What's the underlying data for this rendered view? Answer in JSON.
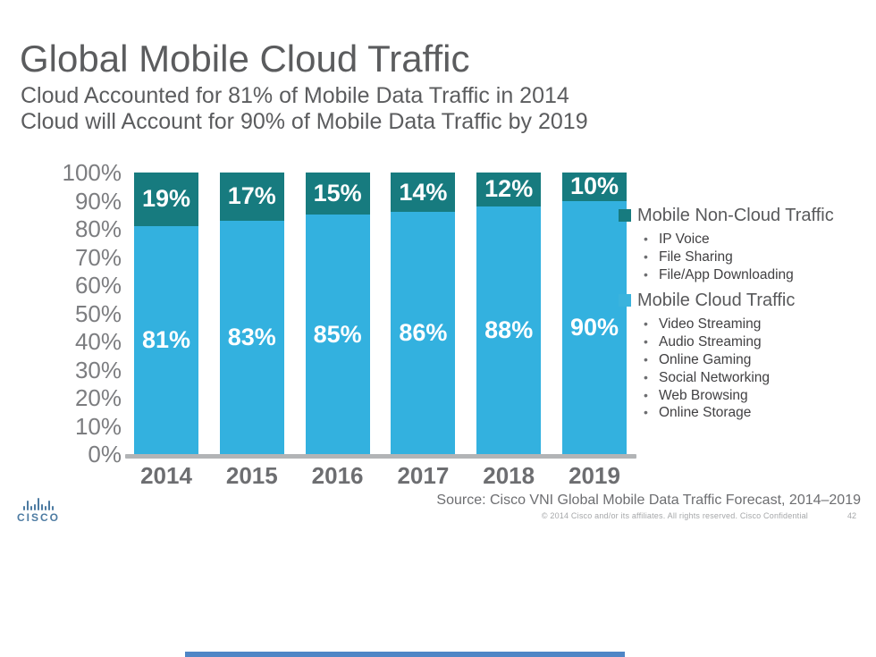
{
  "slide": {
    "title": "Global Mobile Cloud Traffic",
    "subtitle_line1": "Cloud Accounted for 81% of Mobile Data Traffic in 2014",
    "subtitle_line2": "Cloud will Account for 90% of Mobile Data Traffic by 2019",
    "source": "Source: Cisco VNI Global Mobile Data Traffic Forecast, 2014–2019",
    "copyright": "© 2014  Cisco and/or its affiliates. All rights reserved.   Cisco Confidential",
    "page_number": "42",
    "logo_text": "CISCO"
  },
  "chart_data": {
    "type": "bar",
    "stacked": true,
    "title": "Global Mobile Cloud Traffic",
    "categories": [
      "2014",
      "2015",
      "2016",
      "2017",
      "2018",
      "2019"
    ],
    "series": [
      {
        "name": "Mobile Cloud Traffic",
        "color": "#33b1df",
        "values": [
          81,
          83,
          85,
          86,
          88,
          90
        ]
      },
      {
        "name": "Mobile Non-Cloud Traffic",
        "color": "#177b7f",
        "values": [
          19,
          17,
          15,
          14,
          12,
          10
        ]
      }
    ],
    "y_ticks": [
      "100%",
      "90%",
      "80%",
      "70%",
      "60%",
      "50%",
      "40%",
      "30%",
      "20%",
      "10%",
      "0%"
    ],
    "ylim": [
      0,
      100
    ],
    "xlabel": "",
    "ylabel": "",
    "grid": false,
    "legend_position": "right",
    "data_label_format": "percent"
  },
  "legend": {
    "items": [
      {
        "label": "Mobile Non-Cloud Traffic",
        "color": "#177b7f",
        "bullets": [
          "IP Voice",
          "File Sharing",
          "File/App Downloading"
        ]
      },
      {
        "label": "Mobile Cloud Traffic",
        "color": "#3ab3dd",
        "bullets": [
          "Video Streaming",
          "Audio Streaming",
          "Online Gaming",
          "Social Networking",
          "Web Browsing",
          "Online Storage"
        ]
      }
    ]
  },
  "colors": {
    "title_gray": "#5b5c5e",
    "axis_gray": "#7c7d80",
    "year_gray": "#6d6e71",
    "baseline_gray": "#b2b4b6",
    "cloud_blue": "#33b1df",
    "noncloud_teal": "#177b7f",
    "cisco_blue": "#4d7ba2",
    "bottom_bar_blue": "#4f86c6"
  }
}
